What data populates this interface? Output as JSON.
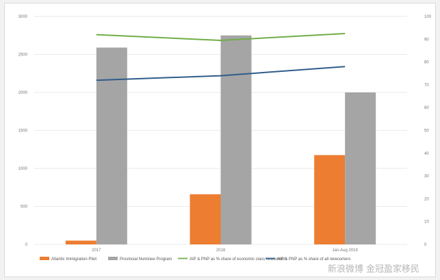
{
  "chart_data": {
    "type": "bar",
    "categories": [
      "2017",
      "2018",
      "Jan-Aug 2019"
    ],
    "series": [
      {
        "name": "Atlantic Immigration Pilot",
        "kind": "bar",
        "axis": "left",
        "color": "#ed7d31",
        "values": [
          50,
          660,
          1175
        ]
      },
      {
        "name": "Provincial Nominee Program",
        "kind": "bar",
        "axis": "left",
        "color": "#a5a5a5",
        "values": [
          2590,
          2750,
          2000
        ]
      },
      {
        "name": "AIP & PNP as % share of economic class newcomers",
        "kind": "line",
        "axis": "right",
        "color": "#70ad47",
        "values": [
          92,
          89.5,
          92.5
        ]
      },
      {
        "name": "AIP & PNP as % share of all newcomers",
        "kind": "line",
        "axis": "right",
        "color": "#2e5c8a",
        "values": [
          72,
          74,
          78
        ]
      }
    ],
    "left_axis": {
      "min": 0,
      "max": 3000,
      "ticks": [
        "0",
        "500",
        "1000",
        "1500",
        "2000",
        "2500",
        "3000"
      ]
    },
    "right_axis": {
      "min": 0,
      "max": 100,
      "ticks": [
        "0",
        "10",
        "20",
        "30",
        "40",
        "50",
        "60",
        "70",
        "80",
        "90",
        "100"
      ]
    },
    "grid": true,
    "legend_position": "bottom",
    "watermark": "新浪微博 金冠盈家移民"
  }
}
